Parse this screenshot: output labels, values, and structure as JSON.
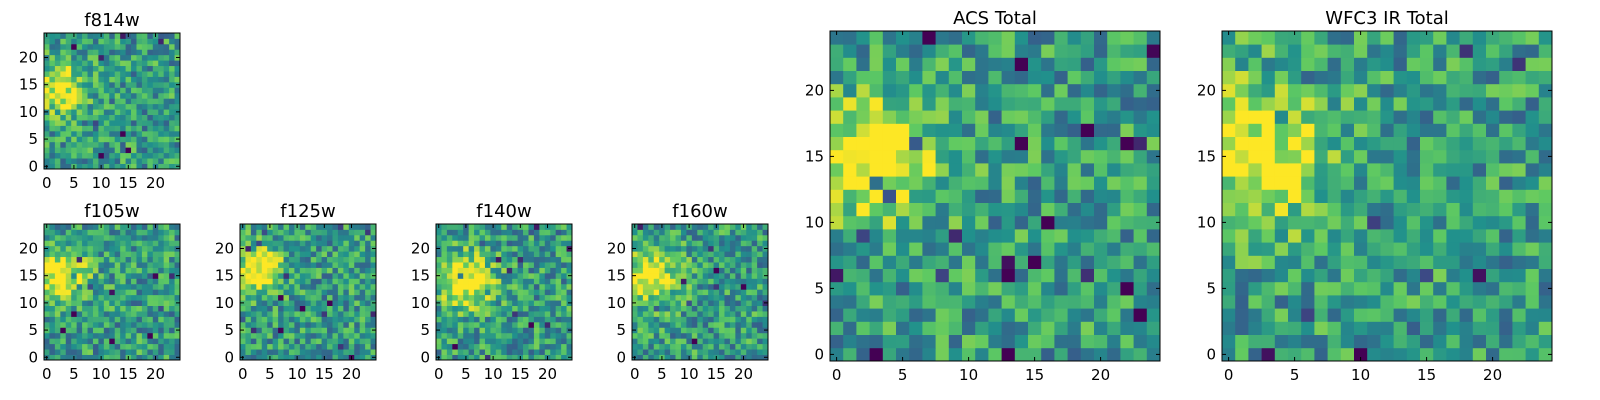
{
  "chart_data": [
    {
      "id": "f814w",
      "type": "heatmap",
      "title": "f814w",
      "xlim": [
        0,
        24
      ],
      "ylim": [
        0,
        24
      ],
      "xticks": [
        0,
        5,
        10,
        15,
        20
      ],
      "yticks": [
        0,
        5,
        10,
        15,
        20
      ],
      "source": {
        "x": 2.5,
        "y": 14.5,
        "sigma": 3.0
      },
      "seed": 11
    },
    {
      "id": "f105w",
      "type": "heatmap",
      "title": "f105w",
      "xlim": [
        0,
        24
      ],
      "ylim": [
        0,
        24
      ],
      "xticks": [
        0,
        5,
        10,
        15,
        20
      ],
      "yticks": [
        0,
        5,
        10,
        15,
        20
      ],
      "source": {
        "x": 3.0,
        "y": 15.0,
        "sigma": 3.5
      },
      "seed": 23
    },
    {
      "id": "f125w",
      "type": "heatmap",
      "title": "f125w",
      "xlim": [
        0,
        24
      ],
      "ylim": [
        0,
        24
      ],
      "xticks": [
        0,
        5,
        10,
        15,
        20
      ],
      "yticks": [
        0,
        5,
        10,
        15,
        20
      ],
      "source": {
        "x": 3.0,
        "y": 16.0,
        "sigma": 3.0
      },
      "seed": 37
    },
    {
      "id": "f140w",
      "type": "heatmap",
      "title": "f140w",
      "xlim": [
        0,
        24
      ],
      "ylim": [
        0,
        24
      ],
      "xticks": [
        0,
        5,
        10,
        15,
        20
      ],
      "yticks": [
        0,
        5,
        10,
        15,
        20
      ],
      "source": {
        "x": 5.0,
        "y": 14.0,
        "sigma": 3.5
      },
      "seed": 41
    },
    {
      "id": "f160w",
      "type": "heatmap",
      "title": "f160w",
      "xlim": [
        0,
        24
      ],
      "ylim": [
        0,
        24
      ],
      "xticks": [
        0,
        5,
        10,
        15,
        20
      ],
      "yticks": [
        0,
        5,
        10,
        15,
        20
      ],
      "source": {
        "x": 3.0,
        "y": 15.0,
        "sigma": 3.5
      },
      "seed": 53
    },
    {
      "id": "acs-total",
      "type": "heatmap",
      "title": "ACS Total",
      "xlim": [
        0,
        24
      ],
      "ylim": [
        0,
        24
      ],
      "xticks": [
        0,
        5,
        10,
        15,
        20
      ],
      "yticks": [
        0,
        5,
        10,
        15,
        20
      ],
      "source": {
        "x": 3.0,
        "y": 15.0,
        "sigma": 3.5
      },
      "seed": 67
    },
    {
      "id": "wfc3-ir-total",
      "type": "heatmap",
      "title": "WFC3 IR Total",
      "xlim": [
        0,
        24
      ],
      "ylim": [
        0,
        24
      ],
      "xticks": [
        0,
        5,
        10,
        15,
        20
      ],
      "yticks": [
        0,
        5,
        10,
        15,
        20
      ],
      "source": {
        "x": 2.0,
        "y": 15.0,
        "sigma": 4.0
      },
      "seed": 79
    }
  ],
  "colormap": [
    "#440154",
    "#3b528b",
    "#21918c",
    "#5ec962",
    "#fde725"
  ]
}
